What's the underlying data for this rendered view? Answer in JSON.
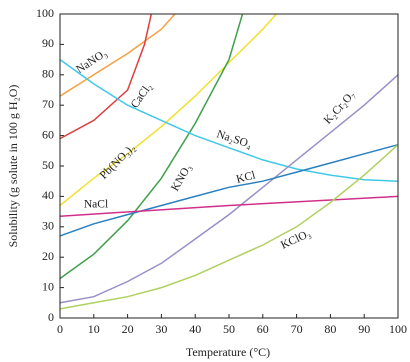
{
  "chart_data": {
    "type": "line",
    "x_label": "Temperature (°C)",
    "y_label": "Solubility (g solute in 100 g H₂O)",
    "xlim": [
      0,
      100
    ],
    "xticks": [
      0,
      10,
      20,
      30,
      40,
      50,
      60,
      70,
      80,
      90,
      100
    ],
    "ylim": [
      0,
      100
    ],
    "yticks": [
      0,
      10,
      20,
      30,
      40,
      50,
      60,
      70,
      80,
      90,
      100
    ],
    "series": [
      {
        "name": "NaNO₃",
        "color": "#f4a040",
        "x": [
          0,
          10,
          20,
          30,
          34
        ],
        "values": [
          73,
          80,
          87,
          95,
          100
        ]
      },
      {
        "name": "CaCl₂",
        "color": "#e03c3c",
        "x": [
          0,
          10,
          20,
          25,
          27
        ],
        "values": [
          59,
          65,
          75,
          90,
          100
        ]
      },
      {
        "name": "Pb(NO₃)₂",
        "color": "#f2e030",
        "x": [
          0,
          10,
          20,
          30,
          40,
          50,
          60,
          64
        ],
        "values": [
          37,
          46,
          54,
          63,
          73,
          84,
          95,
          100
        ]
      },
      {
        "name": "KNO₃",
        "color": "#3fa04a",
        "x": [
          0,
          10,
          20,
          30,
          40,
          50,
          54
        ],
        "values": [
          13,
          21,
          32,
          46,
          64,
          85,
          100
        ]
      },
      {
        "name": "Na₂SO₄",
        "color": "#40c8e8",
        "x": [
          0,
          10,
          20,
          30,
          40,
          50,
          60,
          70,
          80,
          90,
          100
        ],
        "values": [
          85,
          77,
          70,
          65,
          60,
          56,
          52,
          49,
          47,
          45.5,
          45
        ]
      },
      {
        "name": "K₂Cr₂O₇",
        "color": "#9890c8",
        "x": [
          0,
          10,
          20,
          30,
          40,
          50,
          60,
          70,
          80,
          90,
          100
        ],
        "values": [
          5,
          7,
          12,
          18,
          26,
          34,
          43,
          52,
          61,
          70,
          80
        ]
      },
      {
        "name": "KCl",
        "color": "#2a80c0",
        "x": [
          0,
          10,
          20,
          30,
          40,
          50,
          60,
          70,
          80,
          90,
          100
        ],
        "values": [
          27,
          31,
          34,
          37,
          40,
          43,
          45,
          48,
          51,
          54,
          57
        ]
      },
      {
        "name": "NaCl",
        "color": "#d0308a",
        "x": [
          0,
          50,
          100
        ],
        "values": [
          33.5,
          37,
          40
        ]
      },
      {
        "name": "KClO₃",
        "color": "#b0d060",
        "x": [
          0,
          10,
          20,
          30,
          40,
          50,
          60,
          70,
          80,
          90,
          100
        ],
        "values": [
          3,
          5,
          7,
          10,
          14,
          19,
          24,
          30,
          38,
          47,
          57
        ]
      }
    ]
  }
}
